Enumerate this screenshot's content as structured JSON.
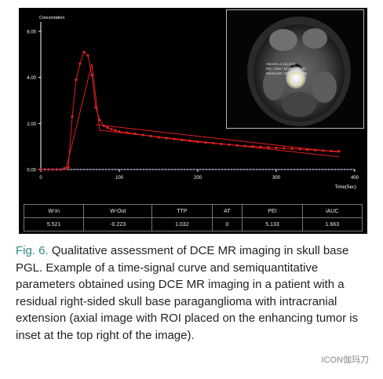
{
  "chart_data": {
    "type": "line",
    "ylabel": "Concentation",
    "xlabel": "Time(Sec)",
    "xlim": [
      0,
      400
    ],
    "ylim": [
      0,
      6
    ],
    "x_ticks": [
      "0",
      "100",
      "200",
      "300",
      "400"
    ],
    "y_ticks": [
      "0.00",
      "2.00",
      "4.00",
      "6.00"
    ],
    "series": [
      {
        "marker": "dot",
        "color": "#e02020",
        "x": [
          0,
          5,
          10,
          15,
          20,
          25,
          30,
          35,
          40,
          45,
          50,
          55,
          60,
          65,
          70,
          75,
          80,
          85,
          90,
          95,
          100,
          110,
          120,
          130,
          140,
          150,
          160,
          170,
          180,
          190,
          200,
          210,
          220,
          230,
          240,
          250,
          260,
          270,
          280,
          290,
          300,
          310,
          320,
          330,
          340,
          350,
          360,
          370,
          380
        ],
        "y": [
          0,
          0,
          0,
          0,
          0,
          0,
          0.05,
          0.1,
          2.3,
          3.9,
          4.6,
          5.1,
          4.95,
          4.1,
          2.7,
          2.15,
          1.9,
          1.82,
          1.75,
          1.7,
          1.65,
          1.6,
          1.55,
          1.5,
          1.45,
          1.4,
          1.36,
          1.32,
          1.28,
          1.24,
          1.2,
          1.17,
          1.14,
          1.11,
          1.08,
          1.05,
          1.02,
          1.0,
          0.98,
          0.96,
          0.94,
          0.92,
          0.9,
          0.88,
          0.86,
          0.84,
          0.82,
          0.8,
          0.79
        ]
      },
      {
        "marker": "none",
        "color": "#e02020",
        "x": [
          0,
          32,
          50,
          65,
          75,
          380
        ],
        "y": [
          0,
          0,
          2.5,
          4.6,
          1.7,
          0.55
        ]
      },
      {
        "marker": "none",
        "color": "#e02020",
        "x": [
          70,
          380
        ],
        "y": [
          1.95,
          0.75
        ]
      },
      {
        "marker": "dash",
        "color": "#7878d8",
        "x": [
          0,
          400
        ],
        "y": [
          0,
          0
        ]
      }
    ],
    "grid": false
  },
  "inset": {
    "lines": [
      "Volume=1.11(cm3)",
      "Min / Max: 19.00 / 308.00",
      "Mean±SD: 233.60±113.39"
    ],
    "roi_color": "#dddd22"
  },
  "params": {
    "headers": [
      "W-In",
      "W-Out",
      "TTP",
      "AT",
      "PEI",
      "iAUC"
    ],
    "values": [
      "5.521",
      "-0.223",
      "1.032",
      "0",
      "5.133",
      "1.663"
    ]
  },
  "caption": {
    "label": "Fig. 6.",
    "text": " Qualitative assessment of DCE MR imaging in skull base PGL. Example of a time-signal curve and semiquantitative parameters obtained using DCE MR imaging in a patient with a residual right-sided skull base paraganglioma with intracranial extension (axial image with ROI placed on the enhancing tumor is inset at the top right of the image)."
  },
  "watermark": "ICON伽玛刀"
}
